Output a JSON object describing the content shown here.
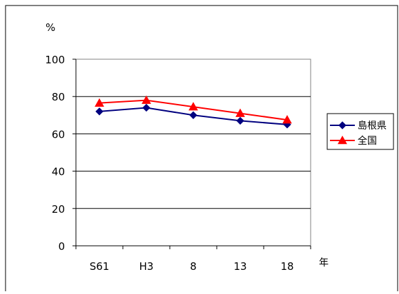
{
  "chart_data": {
    "type": "line",
    "categories": [
      "S61",
      "H3",
      "8",
      "13",
      "18"
    ],
    "series": [
      {
        "name": "島根県",
        "values": [
          72,
          74,
          70,
          67,
          65
        ],
        "color": "#00007f",
        "marker": "diamond"
      },
      {
        "name": "全国",
        "values": [
          76.5,
          78,
          74.5,
          71,
          67.5
        ],
        "color": "#ff0000",
        "marker": "triangle"
      }
    ],
    "title": "",
    "ylabel": "%",
    "xlabel": "年",
    "ylim": [
      0,
      100
    ],
    "yticks": [
      0,
      20,
      40,
      60,
      80,
      100
    ],
    "grid": true,
    "legend": "right"
  }
}
